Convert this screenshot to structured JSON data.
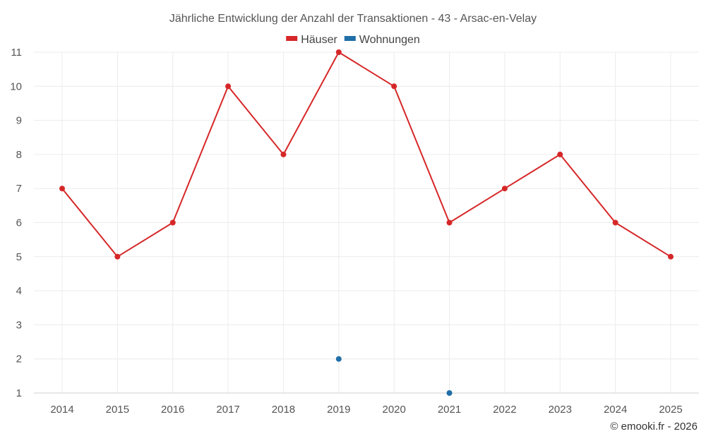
{
  "chart_data": {
    "type": "line",
    "title": "Jährliche Entwicklung der Anzahl der Transaktionen - 43 - Arsac-en-Velay",
    "categories": [
      "2014",
      "2015",
      "2016",
      "2017",
      "2018",
      "2019",
      "2020",
      "2021",
      "2022",
      "2023",
      "2024",
      "2025"
    ],
    "series": [
      {
        "name": "Häuser",
        "color": "#d62728",
        "values": [
          7,
          5,
          6,
          10,
          8,
          11,
          10,
          6,
          7,
          8,
          6,
          5
        ]
      },
      {
        "name": "Wohnungen",
        "color": "#1f6fa8",
        "values": [
          null,
          null,
          null,
          null,
          null,
          2,
          null,
          1,
          null,
          null,
          null,
          null
        ]
      }
    ],
    "ylim": [
      1,
      11
    ],
    "yticks": [
      1,
      2,
      3,
      4,
      5,
      6,
      7,
      8,
      9,
      10,
      11
    ],
    "grid": true,
    "legend_position": "top-center",
    "xlabel": "",
    "ylabel": ""
  },
  "credit": "© emooki.fr - 2026"
}
